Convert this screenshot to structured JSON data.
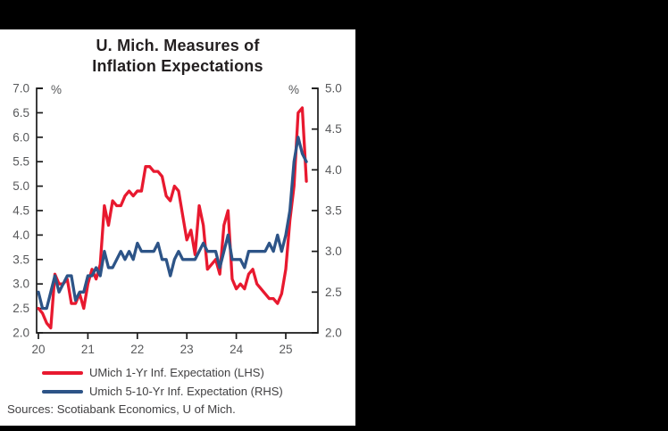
{
  "chart": {
    "title_line1": "U. Mich. Measures of",
    "title_line2": "Inflation Expectations"
  },
  "chart_data": {
    "type": "line",
    "title": "U. Mich. Measures of Inflation Expectations",
    "x_unit": "month",
    "x_start": "2020-01",
    "x_end": "2025-06",
    "x_tick_labels": [
      "20",
      "21",
      "22",
      "23",
      "24",
      "25"
    ],
    "left_unit": "%",
    "right_unit": "%",
    "left_ylim": [
      2.0,
      7.0
    ],
    "right_ylim": [
      2.0,
      5.0
    ],
    "left_ticks": [
      "7.0",
      "6.5",
      "6.0",
      "5.5",
      "5.0",
      "4.5",
      "4.0",
      "3.5",
      "3.0",
      "2.5",
      "2.0"
    ],
    "right_ticks": [
      "5.0",
      "4.5",
      "4.0",
      "3.5",
      "3.0",
      "2.5",
      "2.0"
    ],
    "grid": false,
    "legend_position": "bottom",
    "series": [
      {
        "name": "UMich 1-Yr Inf. Expectation (LHS)",
        "axis": "left",
        "color": "#e8192f",
        "values": [
          2.5,
          2.4,
          2.2,
          2.1,
          3.2,
          3.0,
          3.0,
          3.1,
          2.6,
          2.6,
          2.8,
          2.5,
          3.0,
          3.3,
          3.1,
          3.4,
          4.6,
          4.2,
          4.7,
          4.6,
          4.6,
          4.8,
          4.9,
          4.8,
          4.9,
          4.9,
          5.4,
          5.4,
          5.3,
          5.3,
          5.2,
          4.8,
          4.7,
          5.0,
          4.9,
          4.4,
          3.9,
          4.1,
          3.6,
          4.6,
          4.2,
          3.3,
          3.4,
          3.5,
          3.2,
          4.2,
          4.5,
          3.1,
          2.9,
          3.0,
          2.9,
          3.2,
          3.3,
          3.0,
          2.9,
          2.8,
          2.7,
          2.7,
          2.6,
          2.8,
          3.3,
          4.3,
          5.0,
          6.5,
          6.6,
          5.1
        ]
      },
      {
        "name": "Umich 5-10-Yr Inf. Expectation (RHS)",
        "axis": "right",
        "color": "#2d5487",
        "values": [
          2.5,
          2.3,
          2.3,
          2.5,
          2.7,
          2.5,
          2.6,
          2.7,
          2.7,
          2.4,
          2.5,
          2.5,
          2.7,
          2.7,
          2.8,
          2.7,
          3.0,
          2.8,
          2.8,
          2.9,
          3.0,
          2.9,
          3.0,
          2.9,
          3.1,
          3.0,
          3.0,
          3.0,
          3.0,
          3.1,
          2.9,
          2.9,
          2.7,
          2.9,
          3.0,
          2.9,
          2.9,
          2.9,
          2.9,
          3.0,
          3.1,
          3.0,
          3.0,
          3.0,
          2.8,
          3.0,
          3.2,
          2.9,
          2.9,
          2.9,
          2.8,
          3.0,
          3.0,
          3.0,
          3.0,
          3.0,
          3.1,
          3.0,
          3.2,
          3.0,
          3.2,
          3.5,
          4.1,
          4.4,
          4.2,
          4.1
        ]
      }
    ]
  },
  "footer": {
    "sources": "Sources: Scotiabank Economics, U of Mich."
  },
  "colors": {
    "background": "#000000",
    "panel": "#ffffff",
    "axis": "#1a1a1a",
    "tick_text": "#58595b",
    "series_red": "#e8192f",
    "series_navy": "#2d5487"
  }
}
